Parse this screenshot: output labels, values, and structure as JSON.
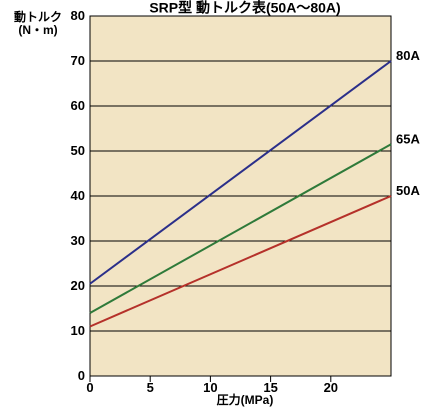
{
  "chart_data": {
    "type": "line",
    "title": "SRP型 動トルク表(50A〜80A)",
    "ylabel_line1": "動トルク",
    "ylabel_line2": "(N・m)",
    "xlabel": "圧力(MPa)",
    "xlim": [
      0,
      25
    ],
    "ylim": [
      0,
      80
    ],
    "xticks": [
      0,
      5,
      10,
      15,
      20
    ],
    "yticks": [
      0,
      10,
      20,
      30,
      40,
      50,
      60,
      70,
      80
    ],
    "grid": "horizontal",
    "background_color": "#f2e4c4",
    "series": [
      {
        "name": "80A",
        "color": "#2b2f8a",
        "x": [
          0,
          25
        ],
        "values": [
          20.5,
          70
        ]
      },
      {
        "name": "65A",
        "color": "#2f7a3a",
        "x": [
          0,
          25
        ],
        "values": [
          14,
          51.5
        ]
      },
      {
        "name": "50A",
        "color": "#b5312a",
        "x": [
          0,
          25
        ],
        "values": [
          11,
          40
        ]
      }
    ]
  }
}
